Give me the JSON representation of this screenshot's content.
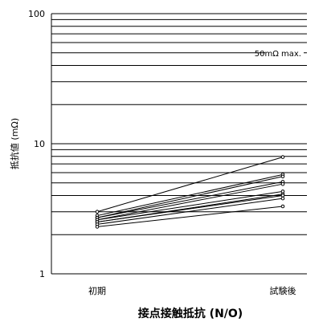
{
  "chart_data": {
    "type": "line",
    "title": "接点接触抵抗 (N/O)",
    "ylabel": "抵抗値 (mΩ)",
    "xlabel": "",
    "y_scale": "log",
    "ylim": [
      1,
      100
    ],
    "yticks": [
      "1",
      "10",
      "100"
    ],
    "categories": [
      "初期",
      "試験後"
    ],
    "grid": "horizontal",
    "limit_line": {
      "label": "50mΩ max.",
      "value": 50
    },
    "series": [
      {
        "values": [
          3.0,
          7.9
        ]
      },
      {
        "values": [
          2.8,
          5.8
        ]
      },
      {
        "values": [
          2.7,
          5.6
        ]
      },
      {
        "values": [
          2.7,
          5.1
        ]
      },
      {
        "values": [
          2.6,
          4.9
        ]
      },
      {
        "values": [
          2.6,
          4.3
        ]
      },
      {
        "values": [
          2.5,
          4.1
        ]
      },
      {
        "values": [
          2.5,
          4.0
        ]
      },
      {
        "values": [
          2.4,
          3.8
        ]
      },
      {
        "values": [
          2.3,
          3.3
        ]
      }
    ],
    "colors": {
      "line": "#000000",
      "grid": "#000000",
      "marker_fill": "#ffffff"
    }
  }
}
